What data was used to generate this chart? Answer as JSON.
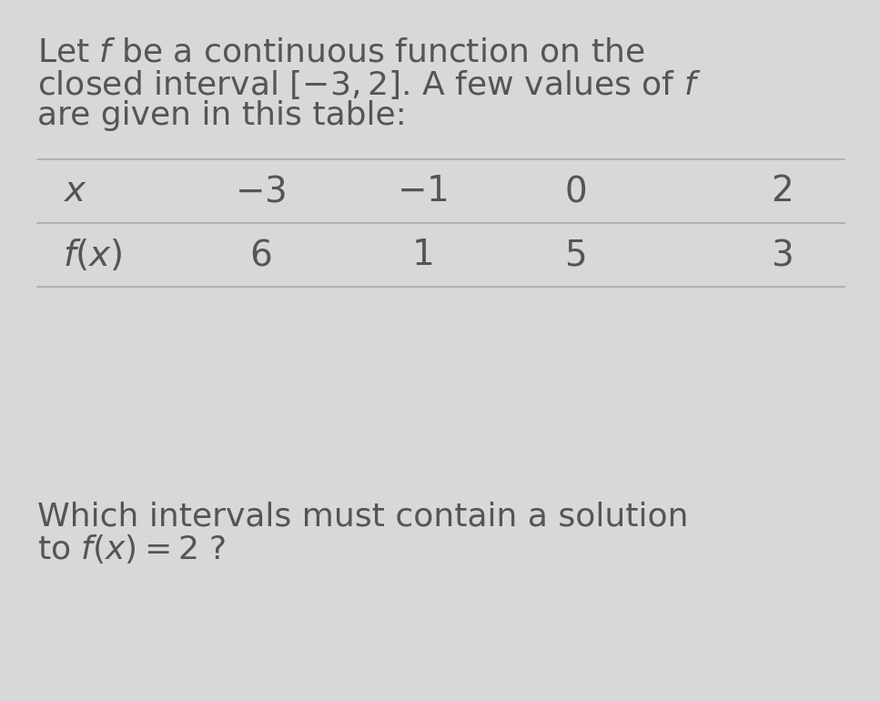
{
  "bg_color": "#d8d8d8",
  "text_color": "#555555",
  "line_color": "#aaaaaa",
  "paragraph1_line1": "Let $f$ be a continuous function on the",
  "paragraph1_line2": "closed interval $[-3, 2]$. A few values of $f$",
  "paragraph1_line3": "are given in this table:",
  "x_label": "$x$",
  "fx_label": "$f(x)$",
  "x_values": [
    "$-3$",
    "$-1$",
    "$0$",
    "$2$"
  ],
  "fx_values": [
    "$6$",
    "$1$",
    "$5$",
    "$3$"
  ],
  "paragraph2_line1": "Which intervals must contain a solution",
  "paragraph2_line2": "to $f(x) = 2$ ?",
  "font_size_para": 26,
  "font_size_table": 28,
  "font_size_question": 26
}
